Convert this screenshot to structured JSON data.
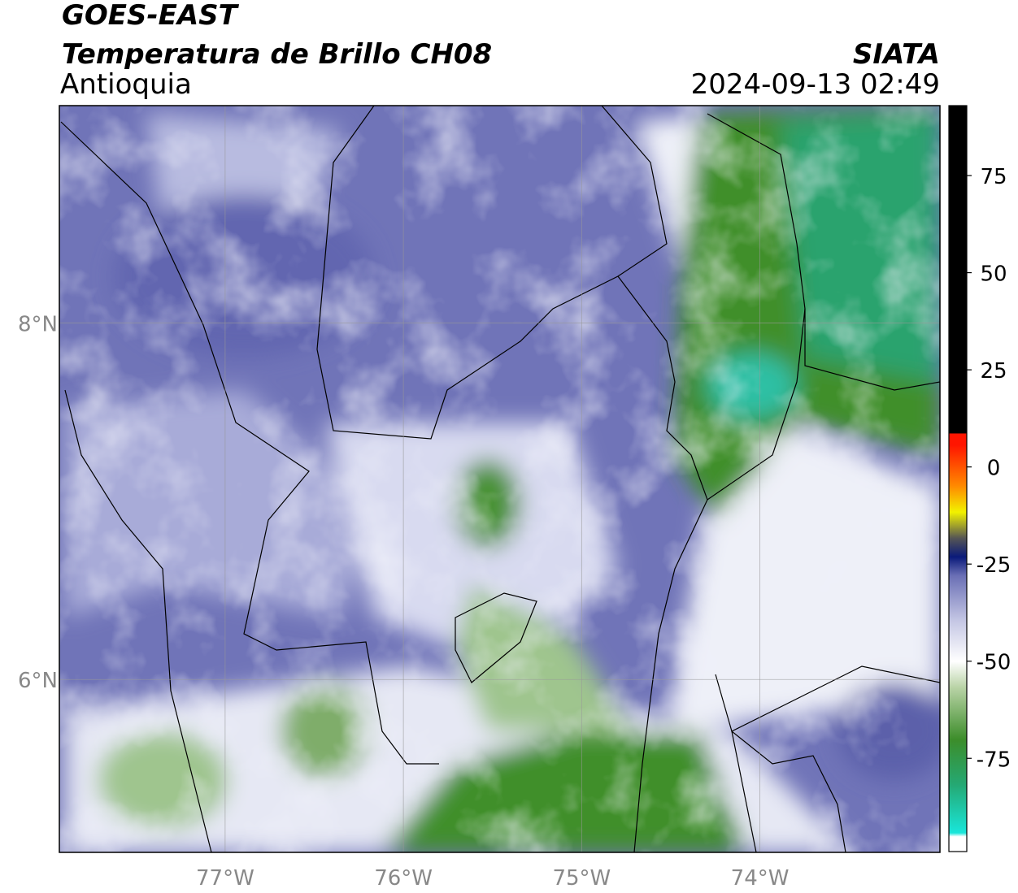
{
  "header": {
    "title": "GOES-EAST",
    "subtitle": "Temperatura de Brillo CH08",
    "source": "SIATA",
    "region": "Antioquia",
    "datetime": "2024-09-13 02:49"
  },
  "map": {
    "xlim": [
      -77.93,
      -72.99
    ],
    "ylim": [
      5.03,
      9.22
    ],
    "xticks": [
      {
        "value": -77,
        "label": "77°W"
      },
      {
        "value": -76,
        "label": "76°W"
      },
      {
        "value": -75,
        "label": "75°W"
      },
      {
        "value": -74,
        "label": "74°W"
      }
    ],
    "yticks": [
      {
        "value": 8,
        "label": "8°N"
      },
      {
        "value": 6,
        "label": "6°N"
      }
    ],
    "grid": true
  },
  "colorbar": {
    "lim": [
      -99,
      93
    ],
    "ticks": [
      75,
      50,
      25,
      0,
      -25,
      -50,
      -75
    ]
  }
}
